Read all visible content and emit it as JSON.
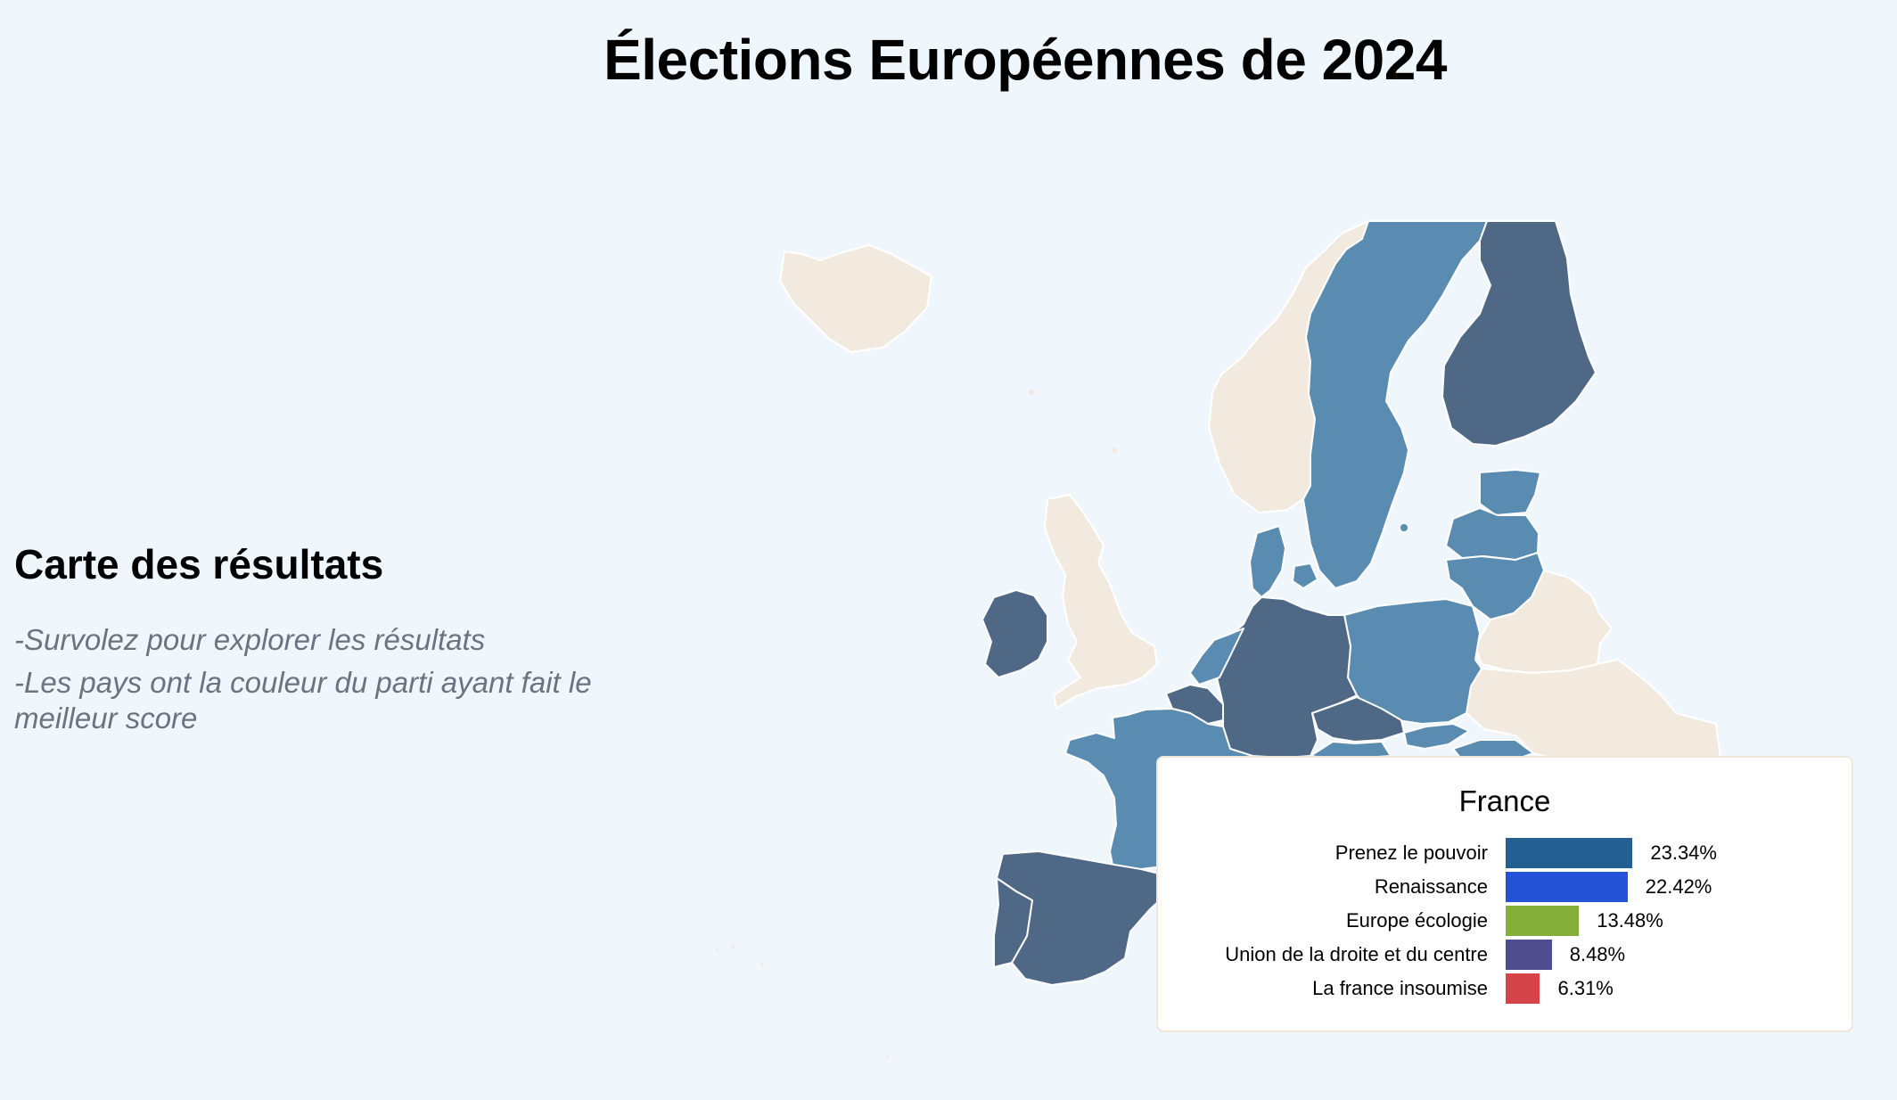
{
  "header": {
    "title": "Élections Européennes de 2024"
  },
  "sidebar": {
    "heading": "Carte des résultats",
    "hints": [
      "-Survolez pour explorer les résultats",
      "-Les pays ont la couleur du parti ayant fait le meilleur score"
    ]
  },
  "map": {
    "colors": {
      "dark": "#4e6886",
      "light": "#5a8bb0",
      "non_eu": "#f2eadf",
      "ocean": "#eff7fd"
    }
  },
  "tooltip": {
    "country": "France",
    "rows": [
      {
        "party": "Prenez le pouvoir",
        "value": 23.34,
        "label": "23.34%",
        "color": "#255f91"
      },
      {
        "party": "Renaissance",
        "value": 22.42,
        "label": "22.42%",
        "color": "#2352d6"
      },
      {
        "party": "Europe écologie",
        "value": 13.48,
        "label": "13.48%",
        "color": "#84ae3a"
      },
      {
        "party": "Union de la droite et du centre",
        "value": 8.48,
        "label": "8.48%",
        "color": "#4f4d8e"
      },
      {
        "party": "La france insoumise",
        "value": 6.31,
        "label": "6.31%",
        "color": "#d64449"
      }
    ]
  }
}
